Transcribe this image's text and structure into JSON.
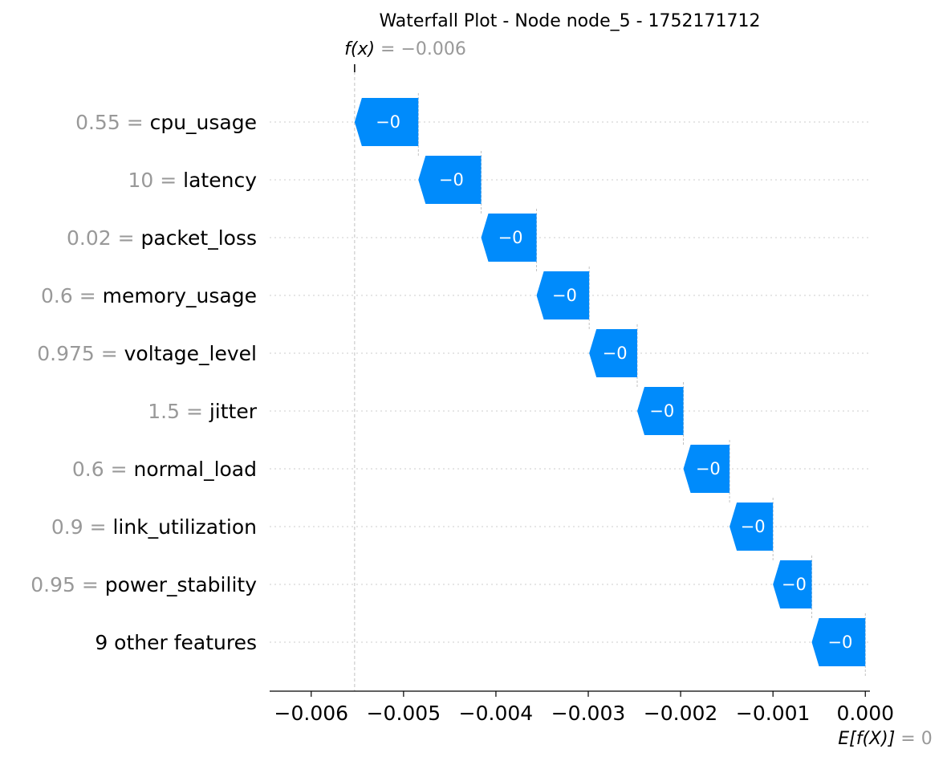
{
  "chart_data": {
    "type": "waterfall",
    "title": "Waterfall Plot - Node node_5 - 1752171712",
    "fx_label": {
      "name": "f(x)",
      "eq": " = −0.006"
    },
    "efx_label": {
      "name": "E[f(X)]",
      "eq": " = 0"
    },
    "base_value": 0.0,
    "final_value": -0.00553,
    "xlim": [
      -0.00645,
      5e-05
    ],
    "x_ticks": [
      -0.006,
      -0.005,
      -0.004,
      -0.003,
      -0.002,
      -0.001,
      0.0
    ],
    "x_tick_labels": [
      "−0.006",
      "−0.005",
      "−0.004",
      "−0.003",
      "−0.002",
      "−0.001",
      "0.000"
    ],
    "features": [
      {
        "value": "0.55 = ",
        "name": "cpu_usage",
        "start": -0.00484,
        "end": -0.00553,
        "label": "−0"
      },
      {
        "value": "10 = ",
        "name": "latency",
        "start": -0.00416,
        "end": -0.00484,
        "label": "−0"
      },
      {
        "value": "0.02 = ",
        "name": "packet_loss",
        "start": -0.00356,
        "end": -0.00416,
        "label": "−0"
      },
      {
        "value": "0.6 = ",
        "name": "memory_usage",
        "start": -0.00299,
        "end": -0.00356,
        "label": "−0"
      },
      {
        "value": "0.975 = ",
        "name": "voltage_level",
        "start": -0.00247,
        "end": -0.00299,
        "label": "−0"
      },
      {
        "value": "1.5 = ",
        "name": "jitter",
        "start": -0.00197,
        "end": -0.00247,
        "label": "−0"
      },
      {
        "value": "0.6 = ",
        "name": "normal_load",
        "start": -0.00147,
        "end": -0.00197,
        "label": "−0"
      },
      {
        "value": "0.9 = ",
        "name": "link_utilization",
        "start": -0.001,
        "end": -0.00147,
        "label": "−0"
      },
      {
        "value": "0.95 = ",
        "name": "power_stability",
        "start": -0.00058,
        "end": -0.001,
        "label": "−0"
      },
      {
        "value": "",
        "name": "9 other features",
        "start": 0.0,
        "end": -0.00058,
        "label": "−0"
      }
    ],
    "colors": {
      "negative": "#008bfb",
      "gray_text": "#999999",
      "grid": "#cccccc"
    }
  }
}
